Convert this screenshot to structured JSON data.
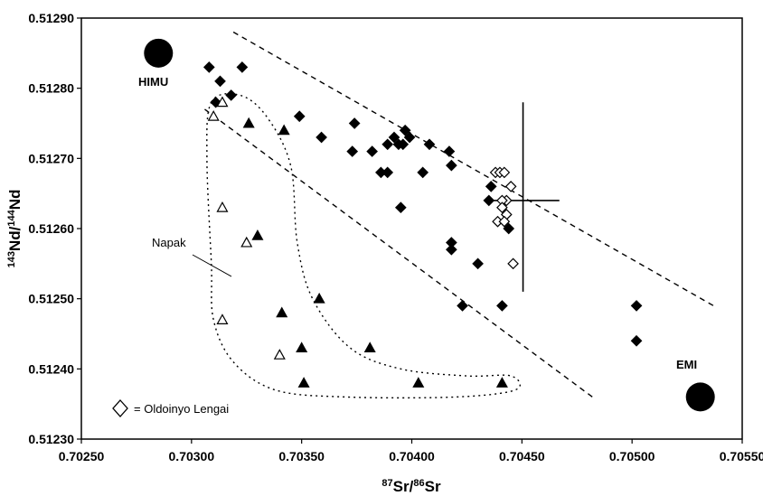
{
  "chart_data": {
    "type": "scatter",
    "title": "",
    "xlabel": {
      "sup": "87",
      "base": "Sr/",
      "sup2": "86",
      "base2": "Sr"
    },
    "ylabel": {
      "sup": "143",
      "base": "Nd/",
      "sup2": "144",
      "base2": "Nd"
    },
    "xlim": [
      0.7025,
      0.7055
    ],
    "ylim": [
      0.5123,
      0.5129
    ],
    "x_ticks": [
      "0.70250",
      "0.70300",
      "0.70350",
      "0.70400",
      "0.70450",
      "0.70500",
      "0.70550"
    ],
    "y_ticks": [
      "0.51230",
      "0.51240",
      "0.51250",
      "0.51260",
      "0.51270",
      "0.51280",
      "0.51290"
    ],
    "grid": false,
    "series": [
      {
        "marker": "filled-diamond",
        "points": [
          [
            0.70308,
            0.51283
          ],
          [
            0.70313,
            0.51281
          ],
          [
            0.70311,
            0.51278
          ],
          [
            0.70318,
            0.51279
          ],
          [
            0.70323,
            0.51283
          ],
          [
            0.70349,
            0.51276
          ],
          [
            0.70374,
            0.51275
          ],
          [
            0.70373,
            0.51271
          ],
          [
            0.70382,
            0.51271
          ],
          [
            0.70386,
            0.51268
          ],
          [
            0.70389,
            0.51268
          ],
          [
            0.70389,
            0.51272
          ],
          [
            0.70392,
            0.51273
          ],
          [
            0.70394,
            0.51272
          ],
          [
            0.70396,
            0.51272
          ],
          [
            0.70397,
            0.51274
          ],
          [
            0.70399,
            0.51273
          ],
          [
            0.70408,
            0.51272
          ],
          [
            0.70405,
            0.51268
          ],
          [
            0.70395,
            0.51263
          ],
          [
            0.70417,
            0.51271
          ],
          [
            0.70418,
            0.51269
          ],
          [
            0.70418,
            0.51258
          ],
          [
            0.70418,
            0.51257
          ],
          [
            0.7043,
            0.51255
          ],
          [
            0.70423,
            0.51249
          ],
          [
            0.70436,
            0.51266
          ],
          [
            0.70435,
            0.51264
          ],
          [
            0.70441,
            0.51249
          ],
          [
            0.70444,
            0.5126
          ],
          [
            0.70502,
            0.51249
          ],
          [
            0.70502,
            0.51244
          ],
          [
            0.70359,
            0.51273
          ]
        ]
      },
      {
        "marker": "open-diamond",
        "points": [
          [
            0.70438,
            0.51268
          ],
          [
            0.7044,
            0.51268
          ],
          [
            0.70442,
            0.51268
          ],
          [
            0.70445,
            0.51266
          ],
          [
            0.70443,
            0.51264
          ],
          [
            0.70441,
            0.51264
          ],
          [
            0.70441,
            0.51263
          ],
          [
            0.70443,
            0.51262
          ],
          [
            0.70439,
            0.51261
          ],
          [
            0.70442,
            0.51261
          ],
          [
            0.70446,
            0.51255
          ]
        ]
      },
      {
        "marker": "filled-triangle",
        "points": [
          [
            0.70326,
            0.51275
          ],
          [
            0.70342,
            0.51274
          ],
          [
            0.7033,
            0.51259
          ],
          [
            0.70358,
            0.5125
          ],
          [
            0.70341,
            0.51248
          ],
          [
            0.7035,
            0.51243
          ],
          [
            0.70381,
            0.51243
          ],
          [
            0.70351,
            0.51238
          ],
          [
            0.70403,
            0.51238
          ],
          [
            0.70441,
            0.51238
          ]
        ]
      },
      {
        "marker": "open-triangle",
        "points": [
          [
            0.7031,
            0.51276
          ],
          [
            0.70314,
            0.51278
          ],
          [
            0.70314,
            0.51263
          ],
          [
            0.70325,
            0.51258
          ],
          [
            0.70314,
            0.51247
          ],
          [
            0.7034,
            0.51242
          ]
        ]
      },
      {
        "marker": "large-circle",
        "points": [
          [
            0.70285,
            0.51285
          ],
          [
            0.70531,
            0.51236
          ]
        ]
      }
    ],
    "error_cross": {
      "x": 0.704505,
      "y": 0.51264,
      "x_range": [
        0.70434,
        0.70467
      ],
      "y_range": [
        0.51251,
        0.51278
      ]
    },
    "reference_lines": [
      {
        "style": "dashed",
        "from": [
          0.70319,
          0.51288
        ],
        "to": [
          0.70537,
          0.51249
        ]
      },
      {
        "style": "dashed",
        "from": [
          0.70306,
          0.51277
        ],
        "to": [
          0.70482,
          0.51236
        ]
      }
    ],
    "field_outline": {
      "style": "dotted",
      "points": [
        [
          0.70309,
          0.51278
        ],
        [
          0.70322,
          0.51279
        ],
        [
          0.70334,
          0.51276
        ],
        [
          0.70345,
          0.51269
        ],
        [
          0.70348,
          0.51258
        ],
        [
          0.70355,
          0.5125
        ],
        [
          0.70372,
          0.51243
        ],
        [
          0.70395,
          0.5124
        ],
        [
          0.70425,
          0.51239
        ],
        [
          0.70445,
          0.51239
        ],
        [
          0.70447,
          0.51237
        ],
        [
          0.7042,
          0.51236
        ],
        [
          0.7037,
          0.51236
        ],
        [
          0.70338,
          0.51237
        ],
        [
          0.70319,
          0.51241
        ],
        [
          0.7031,
          0.51247
        ],
        [
          0.70309,
          0.51255
        ],
        [
          0.70307,
          0.5127
        ],
        [
          0.70309,
          0.51278
        ]
      ]
    },
    "annotations": {
      "himu": "HIMU",
      "emi": "EMI",
      "napak": "Napak",
      "legend_text": "= Oldoinyo Lengai"
    }
  }
}
